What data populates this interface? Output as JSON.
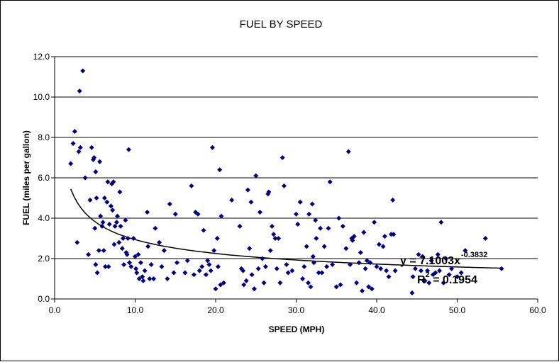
{
  "chart_data": {
    "type": "scatter",
    "title": "FUEL BY SPEED",
    "xlabel": "SPEED (MPH)",
    "ylabel": "FUEL (miles per gallon)",
    "xlim": [
      0,
      60
    ],
    "ylim": [
      0,
      12
    ],
    "x_ticks": [
      "0.0",
      "10.0",
      "20.0",
      "30.0",
      "40.0",
      "50.0",
      "60.0"
    ],
    "y_ticks": [
      "0.0",
      "2.0",
      "4.0",
      "6.0",
      "8.0",
      "10.0",
      "12.0"
    ],
    "grid": "horizontal",
    "legend": "none",
    "marker": "diamond",
    "marker_color": "#000080",
    "trendline": {
      "type": "power",
      "coefficient": 7.1003,
      "exponent": -0.3832,
      "r_squared": 0.1954,
      "equation_main": "y = 7.1003x",
      "equation_exp": "-0.3832",
      "r2_label": "R",
      "r2_exp": "2",
      "r2_value": " = 0.1954",
      "color": "#000000"
    },
    "points": [
      [
        2.0,
        6.7
      ],
      [
        2.3,
        7.7
      ],
      [
        2.5,
        8.3
      ],
      [
        2.8,
        2.8
      ],
      [
        3.0,
        7.3
      ],
      [
        3.1,
        10.3
      ],
      [
        3.2,
        7.5
      ],
      [
        3.5,
        11.3
      ],
      [
        3.8,
        6.0
      ],
      [
        4.2,
        2.2
      ],
      [
        4.4,
        4.9
      ],
      [
        4.6,
        7.5
      ],
      [
        4.8,
        6.9
      ],
      [
        4.9,
        7.0
      ],
      [
        5.0,
        3.5
      ],
      [
        5.1,
        6.3
      ],
      [
        5.1,
        1.7
      ],
      [
        5.2,
        5.0
      ],
      [
        5.3,
        1.3
      ],
      [
        5.5,
        2.4
      ],
      [
        5.6,
        6.8
      ],
      [
        5.7,
        4.1
      ],
      [
        5.9,
        3.6
      ],
      [
        6.0,
        3.8
      ],
      [
        6.1,
        2.4
      ],
      [
        6.2,
        5.0
      ],
      [
        6.3,
        1.6
      ],
      [
        6.5,
        4.8
      ],
      [
        6.6,
        5.8
      ],
      [
        6.7,
        1.6
      ],
      [
        6.8,
        3.7
      ],
      [
        7.0,
        4.6
      ],
      [
        7.1,
        5.7
      ],
      [
        7.2,
        4.4
      ],
      [
        7.3,
        5.8
      ],
      [
        7.4,
        2.7
      ],
      [
        7.5,
        3.6
      ],
      [
        7.7,
        3.8
      ],
      [
        7.8,
        4.1
      ],
      [
        8.0,
        2.8
      ],
      [
        8.1,
        5.3
      ],
      [
        8.2,
        3.6
      ],
      [
        8.4,
        2.5
      ],
      [
        8.5,
        3.0
      ],
      [
        8.6,
        1.7
      ],
      [
        8.8,
        3.9
      ],
      [
        8.9,
        2.3
      ],
      [
        9.0,
        2.2
      ],
      [
        9.1,
        3.0
      ],
      [
        9.2,
        7.4
      ],
      [
        9.3,
        1.8
      ],
      [
        9.5,
        1.6
      ],
      [
        9.8,
        3.0
      ],
      [
        10.0,
        2.1
      ],
      [
        10.1,
        1.5
      ],
      [
        10.2,
        1.3
      ],
      [
        10.4,
        2.2
      ],
      [
        10.5,
        1.0
      ],
      [
        10.7,
        1.8
      ],
      [
        10.9,
        1.1
      ],
      [
        11.0,
        0.9
      ],
      [
        11.2,
        1.4
      ],
      [
        11.5,
        4.3
      ],
      [
        11.6,
        2.6
      ],
      [
        11.8,
        1.0
      ],
      [
        12.0,
        1.7
      ],
      [
        12.3,
        1.0
      ],
      [
        12.5,
        3.5
      ],
      [
        13.0,
        2.8
      ],
      [
        13.3,
        1.6
      ],
      [
        13.6,
        2.4
      ],
      [
        14.0,
        1.0
      ],
      [
        14.3,
        4.7
      ],
      [
        14.8,
        1.3
      ],
      [
        15.0,
        4.2
      ],
      [
        15.2,
        1.8
      ],
      [
        16.2,
        1.3
      ],
      [
        16.5,
        1.9
      ],
      [
        17.0,
        5.6
      ],
      [
        17.3,
        1.2
      ],
      [
        17.5,
        4.3
      ],
      [
        17.8,
        4.2
      ],
      [
        18.0,
        1.4
      ],
      [
        18.3,
        1.6
      ],
      [
        18.5,
        3.4
      ],
      [
        18.8,
        1.2
      ],
      [
        19.0,
        1.9
      ],
      [
        19.2,
        1.7
      ],
      [
        19.4,
        1.4
      ],
      [
        19.6,
        7.5
      ],
      [
        19.8,
        2.4
      ],
      [
        20.0,
        0.5
      ],
      [
        20.2,
        3.0
      ],
      [
        20.3,
        1.6
      ],
      [
        20.5,
        6.4
      ],
      [
        20.6,
        0.7
      ],
      [
        20.7,
        4.1
      ],
      [
        21.0,
        0.8
      ],
      [
        22.0,
        4.9
      ],
      [
        23.0,
        3.6
      ],
      [
        23.2,
        1.5
      ],
      [
        23.4,
        1.4
      ],
      [
        23.5,
        0.7
      ],
      [
        23.8,
        0.9
      ],
      [
        24.0,
        5.4
      ],
      [
        24.2,
        2.5
      ],
      [
        24.4,
        4.8
      ],
      [
        24.5,
        1.2
      ],
      [
        24.8,
        0.5
      ],
      [
        25.0,
        6.1
      ],
      [
        25.3,
        1.5
      ],
      [
        25.5,
        4.3
      ],
      [
        25.8,
        2.0
      ],
      [
        26.0,
        0.8
      ],
      [
        26.2,
        1.6
      ],
      [
        26.5,
        5.2
      ],
      [
        26.6,
        5.3
      ],
      [
        26.8,
        2.4
      ],
      [
        27.0,
        3.6
      ],
      [
        27.2,
        3.2
      ],
      [
        27.4,
        3.0
      ],
      [
        27.6,
        1.5
      ],
      [
        27.8,
        3.0
      ],
      [
        28.0,
        0.8
      ],
      [
        28.3,
        7.0
      ],
      [
        28.5,
        5.6
      ],
      [
        28.8,
        1.7
      ],
      [
        29.0,
        1.3
      ],
      [
        29.5,
        1.4
      ],
      [
        30.0,
        4.2
      ],
      [
        30.2,
        3.7
      ],
      [
        30.5,
        4.8
      ],
      [
        30.8,
        1.0
      ],
      [
        31.0,
        1.6
      ],
      [
        31.3,
        2.6
      ],
      [
        31.5,
        0.8
      ],
      [
        31.6,
        4.2
      ],
      [
        31.8,
        0.6
      ],
      [
        32.0,
        4.7
      ],
      [
        32.1,
        2.1
      ],
      [
        32.2,
        1.8
      ],
      [
        32.4,
        3.9
      ],
      [
        32.5,
        3.0
      ],
      [
        32.8,
        1.3
      ],
      [
        33.0,
        3.5
      ],
      [
        33.2,
        1.3
      ],
      [
        33.5,
        2.6
      ],
      [
        33.8,
        1.6
      ],
      [
        34.0,
        3.5
      ],
      [
        34.2,
        5.8
      ],
      [
        34.5,
        1.7
      ],
      [
        35.0,
        0.6
      ],
      [
        35.3,
        4.0
      ],
      [
        35.5,
        0.7
      ],
      [
        35.8,
        3.6
      ],
      [
        36.2,
        2.5
      ],
      [
        36.5,
        7.3
      ],
      [
        36.7,
        1.7
      ],
      [
        36.9,
        3.0
      ],
      [
        37.0,
        2.9
      ],
      [
        37.2,
        3.1
      ],
      [
        37.5,
        0.8
      ],
      [
        37.8,
        1.8
      ],
      [
        38.0,
        2.3
      ],
      [
        38.2,
        0.4
      ],
      [
        38.4,
        3.3
      ],
      [
        38.6,
        1.5
      ],
      [
        38.8,
        1.9
      ],
      [
        39.0,
        0.6
      ],
      [
        39.2,
        1.8
      ],
      [
        39.4,
        0.5
      ],
      [
        39.7,
        3.8
      ],
      [
        40.0,
        1.6
      ],
      [
        40.3,
        2.7
      ],
      [
        40.5,
        1.5
      ],
      [
        40.8,
        2.6
      ],
      [
        41.0,
        3.1
      ],
      [
        41.2,
        1.4
      ],
      [
        41.5,
        1.1
      ],
      [
        41.8,
        3.2
      ],
      [
        42.0,
        4.9
      ],
      [
        42.1,
        3.2
      ],
      [
        42.3,
        1.4
      ],
      [
        44.4,
        0.3
      ],
      [
        44.5,
        1.1
      ],
      [
        44.8,
        1.5
      ],
      [
        45.2,
        2.2
      ],
      [
        45.5,
        1.4
      ],
      [
        45.7,
        2.1
      ],
      [
        46.0,
        0.9
      ],
      [
        46.3,
        1.4
      ],
      [
        46.5,
        0.8
      ],
      [
        46.8,
        1.9
      ],
      [
        47.0,
        1.2
      ],
      [
        47.3,
        1.3
      ],
      [
        47.6,
        2.2
      ],
      [
        47.8,
        1.4
      ],
      [
        48.0,
        3.8
      ],
      [
        48.3,
        0.8
      ],
      [
        48.6,
        2.0
      ],
      [
        49.0,
        1.2
      ],
      [
        49.3,
        1.5
      ],
      [
        50.0,
        1.1
      ],
      [
        50.5,
        1.3
      ],
      [
        51.0,
        2.4
      ],
      [
        53.5,
        3.0
      ],
      [
        55.5,
        1.5
      ]
    ]
  }
}
